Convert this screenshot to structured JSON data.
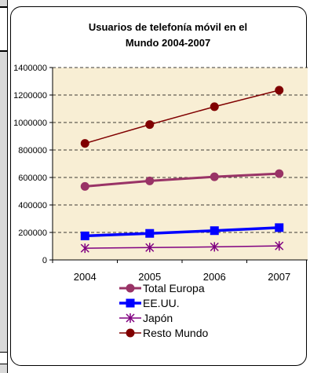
{
  "chart_data": {
    "type": "line",
    "title": "Usuarios de telefonía móvil en el Mundo 2004-2007",
    "title_lines": [
      "Usuarios de telefonía móvil en el",
      "Mundo 2004-2007"
    ],
    "categories": [
      "2004",
      "2005",
      "2006",
      "2007"
    ],
    "ylim": [
      0,
      1400000
    ],
    "yticks": [
      0,
      200000,
      400000,
      600000,
      800000,
      1000000,
      1200000,
      1400000
    ],
    "ytick_labels": [
      "0",
      "200000",
      "400000",
      "600000",
      "800000",
      "1000000",
      "1200000",
      "1400000"
    ],
    "grid": "horizontal-dashed",
    "legend_position": "bottom",
    "plot_background": "#f8eed4",
    "series": [
      {
        "name": "Total Europa",
        "values": [
          535000,
          575000,
          605000,
          628000
        ],
        "color": "#993366",
        "marker": "circle"
      },
      {
        "name": "EE.UU.",
        "values": [
          175000,
          193000,
          213000,
          235000
        ],
        "color": "#0000ff",
        "marker": "square"
      },
      {
        "name": "Japón",
        "values": [
          85000,
          90000,
          95000,
          102000
        ],
        "color": "#800080",
        "marker": "asterisk"
      },
      {
        "name": "Resto Mundo",
        "values": [
          848000,
          985000,
          1115000,
          1235000
        ],
        "color": "#800000",
        "marker": "circle"
      }
    ]
  }
}
